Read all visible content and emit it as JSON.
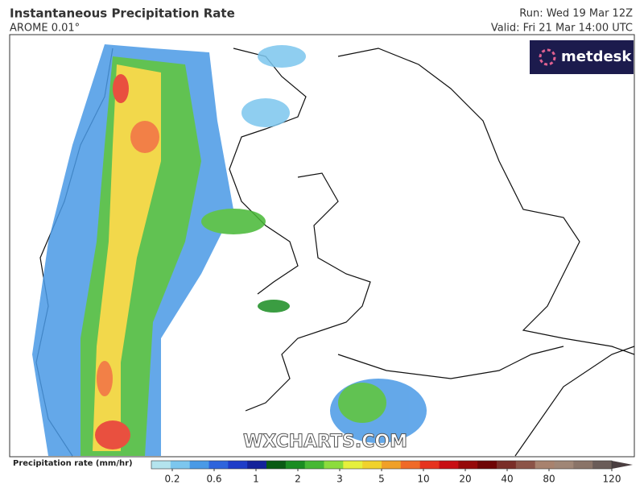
{
  "header": {
    "title": "Instantaneous Precipitation Rate",
    "model": "AROME 0.01°",
    "run": "Run: Wed 19 Mar 12Z",
    "valid": "Valid: Fri 21 Mar 14:00 UTC"
  },
  "logo": "metdesk",
  "watermark": "WXCHARTS.COM",
  "colorbar": {
    "label": "Precipitation rate (mm/hr)",
    "colors": [
      "#b4e4ee",
      "#7cc6ee",
      "#4a9ae6",
      "#2e64dc",
      "#1e3cc8",
      "#14229a",
      "#0a5a14",
      "#1a8c22",
      "#46b834",
      "#8cdc3c",
      "#e6f03c",
      "#f0d22c",
      "#f0a028",
      "#f06a28",
      "#e6321e",
      "#c80f14",
      "#960a0a",
      "#6e0505",
      "#7a2e28",
      "#8c5448",
      "#a8826e",
      "#a08676",
      "#8a7468",
      "#6a5c58",
      "#4a3e40"
    ],
    "ticks": [
      0.2,
      0.6,
      1,
      2,
      3,
      5,
      10,
      20,
      40,
      80,
      120
    ]
  }
}
